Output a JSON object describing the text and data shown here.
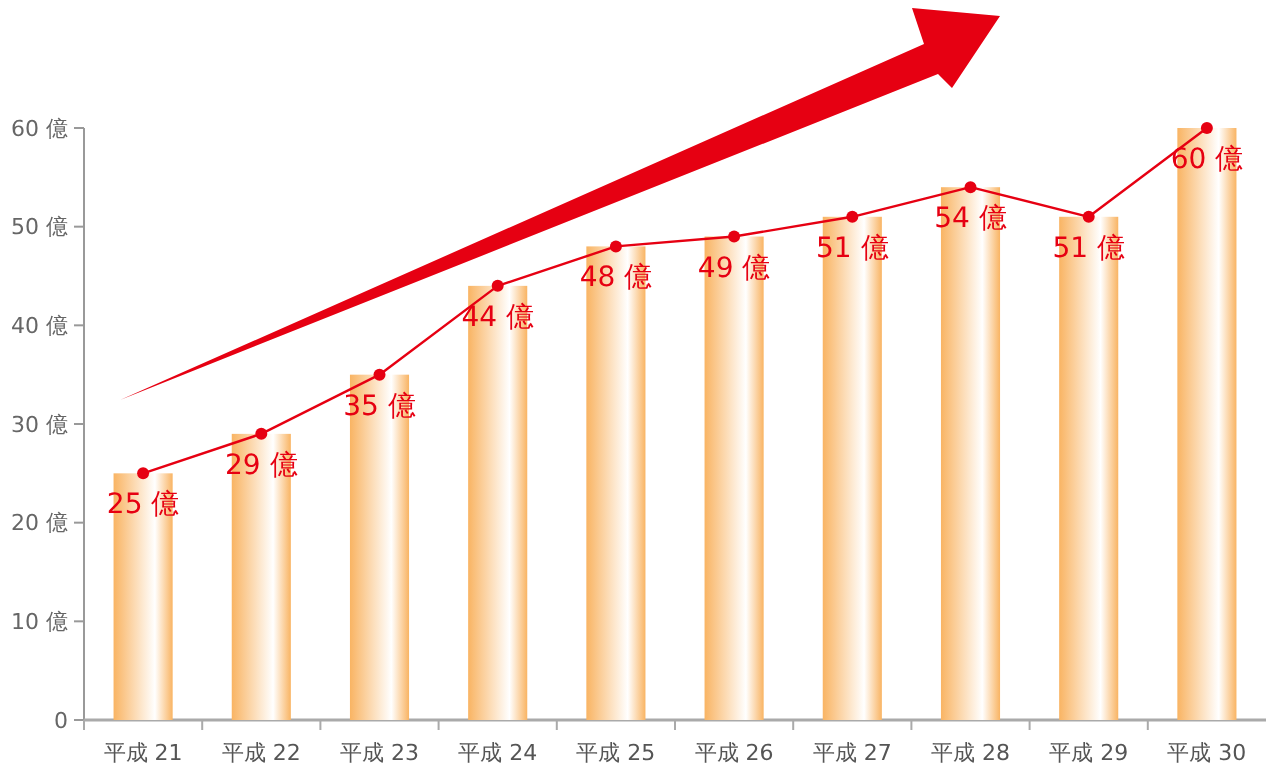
{
  "chart_data": {
    "type": "bar",
    "categories": [
      "平成 21",
      "平成 22",
      "平成 23",
      "平成 24",
      "平成 25",
      "平成 26",
      "平成 27",
      "平成 28",
      "平成 29",
      "平成 30"
    ],
    "series": [
      {
        "color": "#f9b463",
        "values": [
          25,
          29,
          35,
          44,
          48,
          49,
          51,
          54,
          51,
          60
        ]
      },
      {
        "type": "line",
        "color": "#e60012",
        "values": [
          25,
          29,
          35,
          44,
          48,
          49,
          51,
          54,
          51,
          60
        ],
        "value_labels": [
          "25 億",
          "29 億",
          "35 億",
          "44 億",
          "48 億",
          "49 億",
          "51 億",
          "54 億",
          "51 億",
          "60 億"
        ]
      }
    ],
    "ylim": [
      0,
      60
    ],
    "yticks": [
      0,
      {
        "value": 10,
        "label": "10 億"
      },
      {
        "value": 20,
        "label": "20 億"
      },
      {
        "value": 30,
        "label": "30 億"
      },
      {
        "value": 40,
        "label": "40 億"
      },
      {
        "value": 50,
        "label": "50 億"
      },
      {
        "value": 60,
        "label": "60 億"
      }
    ],
    "grid": false,
    "marker": "circle",
    "line_style": "solid"
  }
}
